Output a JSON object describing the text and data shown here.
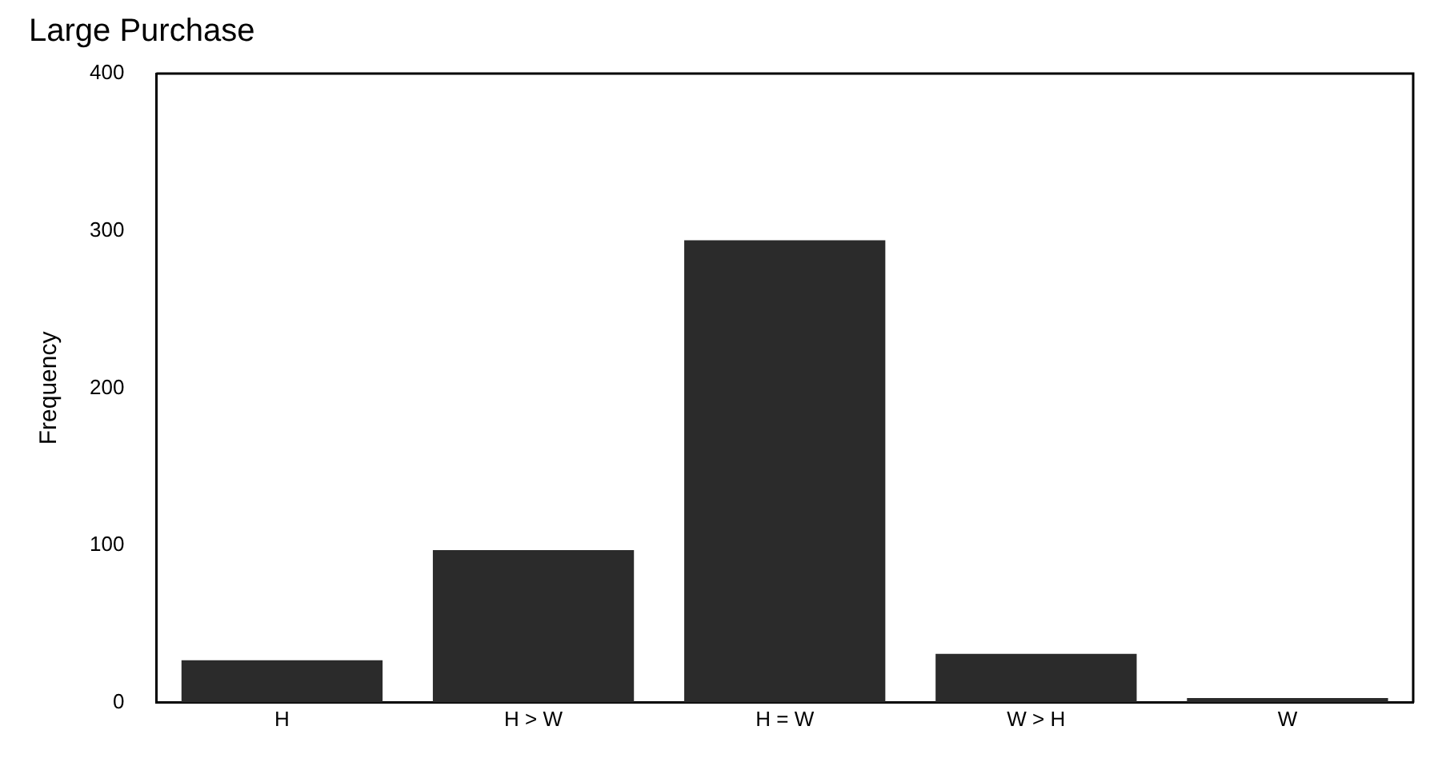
{
  "chart_data": {
    "type": "bar",
    "title": "Large Purchase",
    "ylabel": "Frequency",
    "categories": [
      "H",
      "H > W",
      "H = W",
      "W > H",
      "W"
    ],
    "values": [
      27,
      97,
      294,
      31,
      3
    ],
    "color": "#2b2b2b",
    "ylim": [
      0,
      400
    ],
    "yticks": [
      0,
      100,
      200,
      300,
      400
    ],
    "grid": false,
    "legend": false
  }
}
